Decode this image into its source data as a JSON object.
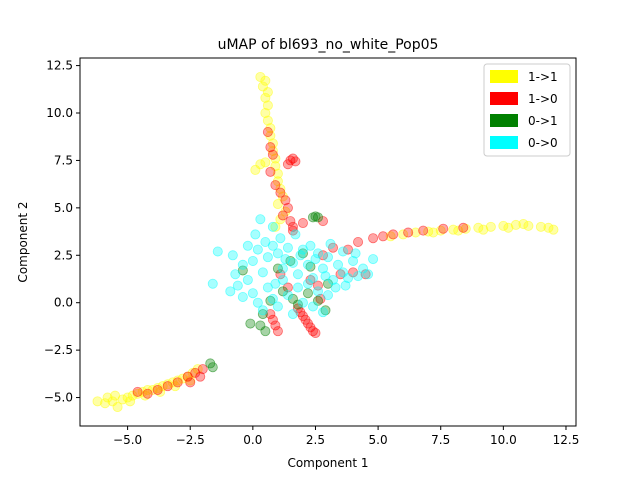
{
  "chart_data": {
    "type": "scatter",
    "title": "uMAP of bl693_no_white_Pop05",
    "xlabel": "Component 1",
    "ylabel": "Component 2",
    "xlim": [
      -6.9,
      12.9
    ],
    "ylim": [
      -6.5,
      12.9
    ],
    "xticks": [
      -5.0,
      -2.5,
      0.0,
      2.5,
      5.0,
      7.5,
      10.0,
      12.5
    ],
    "xtick_labels": [
      "−5.0",
      "−2.5",
      "0.0",
      "2.5",
      "5.0",
      "7.5",
      "10.0",
      "12.5"
    ],
    "yticks": [
      -5.0,
      -2.5,
      0.0,
      2.5,
      5.0,
      7.5,
      10.0,
      12.5
    ],
    "ytick_labels": [
      "−5.0",
      "−2.5",
      "0.0",
      "2.5",
      "5.0",
      "7.5",
      "10.0",
      "12.5"
    ],
    "grid": false,
    "legend_position": "top-right",
    "series": [
      {
        "name": "1->1",
        "color": "#ffff00",
        "points": [
          [
            -6.2,
            -5.2
          ],
          [
            -5.9,
            -5.3
          ],
          [
            -5.6,
            -5.2
          ],
          [
            -5.4,
            -5.5
          ],
          [
            -5.2,
            -5.1
          ],
          [
            -5.0,
            -5.0
          ],
          [
            -4.8,
            -4.9
          ],
          [
            -4.6,
            -4.8
          ],
          [
            -4.4,
            -4.7
          ],
          [
            -4.2,
            -4.6
          ],
          [
            -4.0,
            -4.6
          ],
          [
            -3.8,
            -4.5
          ],
          [
            -3.6,
            -4.4
          ],
          [
            -3.4,
            -4.3
          ],
          [
            -3.2,
            -4.2
          ],
          [
            -3.0,
            -4.1
          ],
          [
            -2.8,
            -4.0
          ],
          [
            -2.6,
            -3.9
          ],
          [
            -2.4,
            -3.7
          ],
          [
            -2.2,
            -3.5
          ],
          [
            -5.8,
            -5.0
          ],
          [
            -5.5,
            -4.9
          ],
          [
            -4.9,
            -5.2
          ],
          [
            -4.3,
            -4.9
          ],
          [
            -3.7,
            -4.7
          ],
          [
            -3.1,
            -4.4
          ],
          [
            -2.5,
            -4.1
          ],
          [
            0.3,
            11.9
          ],
          [
            0.5,
            11.7
          ],
          [
            0.4,
            11.4
          ],
          [
            0.6,
            11.1
          ],
          [
            0.5,
            10.8
          ],
          [
            0.6,
            10.4
          ],
          [
            0.5,
            10.0
          ],
          [
            0.6,
            9.6
          ],
          [
            0.7,
            9.2
          ],
          [
            0.7,
            8.8
          ],
          [
            0.8,
            8.4
          ],
          [
            0.8,
            8.0
          ],
          [
            0.9,
            7.6
          ],
          [
            0.5,
            7.4
          ],
          [
            0.3,
            7.3
          ],
          [
            0.1,
            7.0
          ],
          [
            0.9,
            7.2
          ],
          [
            1.0,
            6.8
          ],
          [
            1.0,
            6.4
          ],
          [
            1.1,
            6.0
          ],
          [
            1.2,
            5.6
          ],
          [
            1.0,
            5.2
          ],
          [
            1.3,
            4.8
          ],
          [
            1.1,
            4.4
          ],
          [
            0.9,
            4.0
          ],
          [
            5.5,
            3.5
          ],
          [
            6.0,
            3.6
          ],
          [
            6.5,
            3.7
          ],
          [
            7.0,
            3.75
          ],
          [
            7.5,
            3.8
          ],
          [
            8.0,
            3.85
          ],
          [
            8.5,
            3.9
          ],
          [
            9.0,
            3.95
          ],
          [
            9.5,
            4.0
          ],
          [
            10.0,
            4.05
          ],
          [
            10.5,
            4.1
          ],
          [
            11.0,
            4.05
          ],
          [
            11.5,
            4.0
          ],
          [
            12.0,
            3.85
          ],
          [
            10.2,
            3.95
          ],
          [
            9.2,
            3.85
          ],
          [
            8.2,
            3.8
          ],
          [
            7.2,
            3.7
          ],
          [
            11.8,
            3.95
          ],
          [
            10.8,
            4.15
          ]
        ]
      },
      {
        "name": "1->0",
        "color": "#ff0000",
        "points": [
          [
            1.5,
            7.5
          ],
          [
            1.6,
            7.6
          ],
          [
            1.7,
            7.45
          ],
          [
            1.4,
            7.3
          ],
          [
            0.6,
            9.0
          ],
          [
            0.7,
            8.2
          ],
          [
            0.8,
            7.8
          ],
          [
            0.7,
            6.9
          ],
          [
            0.9,
            6.2
          ],
          [
            1.1,
            5.8
          ],
          [
            1.3,
            5.4
          ],
          [
            1.4,
            5.0
          ],
          [
            1.2,
            4.6
          ],
          [
            1.5,
            4.3
          ],
          [
            1.6,
            4.0
          ],
          [
            1.8,
            -0.3
          ],
          [
            1.9,
            -0.5
          ],
          [
            2.0,
            -0.7
          ],
          [
            2.1,
            -0.9
          ],
          [
            2.2,
            -1.1
          ],
          [
            2.3,
            -1.3
          ],
          [
            2.4,
            -1.5
          ],
          [
            2.5,
            -1.6
          ],
          [
            0.7,
            -0.6
          ],
          [
            0.8,
            -0.9
          ],
          [
            0.9,
            -1.2
          ],
          [
            1.0,
            -1.5
          ],
          [
            -2.0,
            -3.5
          ],
          [
            -2.3,
            -3.7
          ],
          [
            -2.6,
            -3.9
          ],
          [
            -3.0,
            -4.2
          ],
          [
            -3.4,
            -4.4
          ],
          [
            -3.8,
            -4.6
          ],
          [
            -4.2,
            -4.8
          ],
          [
            -4.6,
            -4.7
          ],
          [
            -2.1,
            -3.9
          ],
          [
            -2.5,
            -4.2
          ],
          [
            3.5,
            1.5
          ],
          [
            4.0,
            1.6
          ],
          [
            4.5,
            1.5
          ],
          [
            3.8,
            2.8
          ],
          [
            4.2,
            3.2
          ],
          [
            4.8,
            3.4
          ],
          [
            5.2,
            3.5
          ],
          [
            5.6,
            3.6
          ],
          [
            6.2,
            3.7
          ],
          [
            6.8,
            3.8
          ],
          [
            7.6,
            3.9
          ],
          [
            8.4,
            3.95
          ],
          [
            2.8,
            2.5
          ],
          [
            3.2,
            2.9
          ],
          [
            2.3,
            1.2
          ],
          [
            2.6,
            0.9
          ],
          [
            1.4,
            0.8
          ],
          [
            1.6,
            3.8
          ],
          [
            2.0,
            4.2
          ],
          [
            2.8,
            4.3
          ],
          [
            1.1,
            1.5
          ],
          [
            2.7,
            0.2
          ]
        ]
      },
      {
        "name": "0->1",
        "color": "#008000",
        "points": [
          [
            2.5,
            4.55
          ],
          [
            2.6,
            4.5
          ],
          [
            2.4,
            4.5
          ],
          [
            0.3,
            -1.2
          ],
          [
            -0.1,
            -1.1
          ],
          [
            0.5,
            -1.5
          ],
          [
            -1.7,
            -3.2
          ],
          [
            -1.6,
            -3.4
          ],
          [
            1.2,
            0.6
          ],
          [
            1.6,
            0.2
          ],
          [
            2.2,
            0.5
          ],
          [
            2.6,
            0.1
          ],
          [
            1.0,
            1.8
          ],
          [
            1.5,
            2.2
          ],
          [
            2.0,
            2.6
          ],
          [
            0.7,
            0.1
          ],
          [
            -0.4,
            1.7
          ],
          [
            3.0,
            1.0
          ],
          [
            2.3,
            1.9
          ],
          [
            1.8,
            -0.1
          ],
          [
            0.4,
            -0.6
          ],
          [
            2.9,
            -0.4
          ]
        ]
      },
      {
        "name": "0->0",
        "color": "#00ffff",
        "points": [
          [
            -1.4,
            2.7
          ],
          [
            -1.6,
            1.0
          ],
          [
            -0.8,
            2.5
          ],
          [
            -0.4,
            2.0
          ],
          [
            -0.2,
            3.0
          ],
          [
            0.0,
            2.2
          ],
          [
            0.2,
            2.8
          ],
          [
            0.4,
            1.6
          ],
          [
            0.6,
            2.4
          ],
          [
            0.8,
            3.0
          ],
          [
            1.0,
            2.6
          ],
          [
            1.2,
            1.8
          ],
          [
            1.4,
            2.9
          ],
          [
            1.6,
            2.1
          ],
          [
            1.8,
            1.5
          ],
          [
            2.0,
            2.8
          ],
          [
            2.2,
            2.0
          ],
          [
            2.4,
            1.3
          ],
          [
            2.6,
            2.6
          ],
          [
            2.8,
            1.8
          ],
          [
            3.0,
            2.4
          ],
          [
            3.2,
            1.2
          ],
          [
            3.4,
            2.0
          ],
          [
            3.6,
            1.6
          ],
          [
            3.8,
            1.3
          ],
          [
            4.0,
            2.2
          ],
          [
            4.2,
            1.4
          ],
          [
            4.4,
            1.8
          ],
          [
            4.6,
            1.5
          ],
          [
            0.0,
            0.5
          ],
          [
            0.2,
            0.0
          ],
          [
            0.4,
            -0.4
          ],
          [
            0.6,
            0.8
          ],
          [
            0.8,
            0.2
          ],
          [
            1.0,
            -0.2
          ],
          [
            1.2,
            1.2
          ],
          [
            1.4,
            0.4
          ],
          [
            1.6,
            -0.6
          ],
          [
            1.8,
            0.8
          ],
          [
            2.0,
            0.0
          ],
          [
            2.2,
            1.0
          ],
          [
            2.4,
            -0.2
          ],
          [
            2.6,
            0.6
          ],
          [
            2.8,
            -0.5
          ],
          [
            3.0,
            0.4
          ],
          [
            -0.4,
            0.3
          ],
          [
            -0.6,
            0.9
          ],
          [
            -0.2,
            1.2
          ],
          [
            0.5,
            3.2
          ],
          [
            1.1,
            3.4
          ],
          [
            1.7,
            3.6
          ],
          [
            2.3,
            3.0
          ],
          [
            3.1,
            3.1
          ],
          [
            3.6,
            2.7
          ],
          [
            4.1,
            2.6
          ],
          [
            4.8,
            2.3
          ],
          [
            0.3,
            4.4
          ],
          [
            0.8,
            4.0
          ],
          [
            0.1,
            3.6
          ],
          [
            -0.7,
            1.5
          ],
          [
            -0.9,
            0.6
          ],
          [
            0.9,
            1.0
          ],
          [
            1.3,
            2.3
          ],
          [
            1.9,
            2.5
          ],
          [
            2.5,
            2.3
          ],
          [
            2.9,
            1.4
          ],
          [
            3.3,
            0.8
          ],
          [
            3.7,
            0.9
          ]
        ]
      }
    ]
  }
}
